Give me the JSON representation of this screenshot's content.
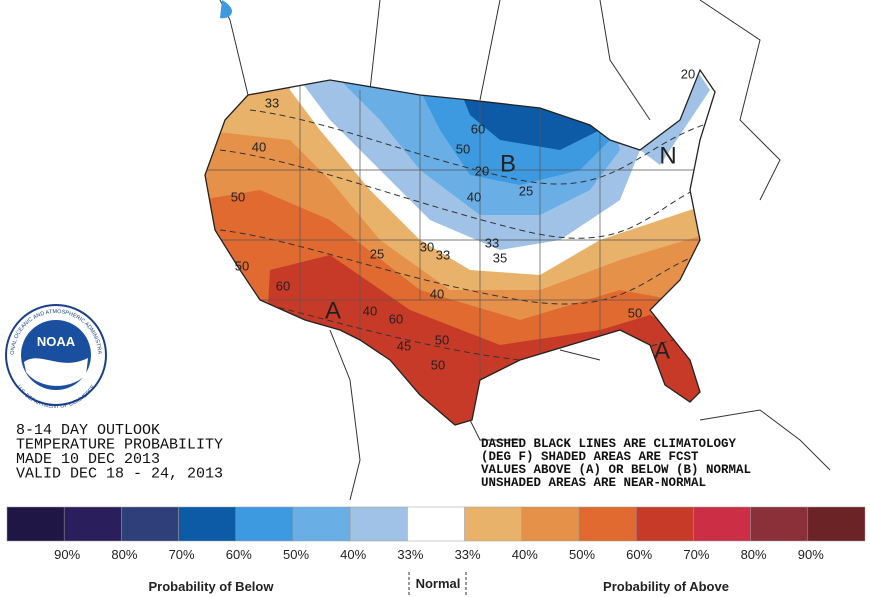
{
  "title_block": {
    "lines": [
      "8-14 DAY OUTLOOK",
      "TEMPERATURE PROBABILITY",
      "MADE  10 DEC 2013",
      "VALID  DEC 18 - 24, 2013"
    ]
  },
  "notes": [
    "DASHED BLACK LINES ARE CLIMATOLOGY",
    "(DEG F) SHADED AREAS ARE FCST",
    "VALUES ABOVE (A) OR BELOW (B) NORMAL",
    "UNSHADED AREAS ARE NEAR-NORMAL"
  ],
  "logo": {
    "text": "NOAA",
    "ring_top": "NATIONAL OCEANIC AND ATMOSPHERIC ADMINISTRATION",
    "ring_bottom": "U.S. DEPARTMENT OF COMMERCE"
  },
  "map_labels": [
    "A",
    "A",
    "B",
    "N",
    "33",
    "40",
    "50",
    "50",
    "60",
    "40",
    "60",
    "45",
    "50",
    "50",
    "40",
    "33",
    "30",
    "25",
    "33",
    "35",
    "40",
    "50",
    "60",
    "20",
    "25",
    "20",
    "50"
  ],
  "legend": {
    "colors": [
      "#1f1645",
      "#2a1f5c",
      "#2e3f7a",
      "#0d5aa6",
      "#3d9ae0",
      "#6aaee6",
      "#a0c2e6",
      "#ffffff",
      "#e9b26a",
      "#e6914a",
      "#e06a30",
      "#c83a28",
      "#cc2e45",
      "#8b3038",
      "#6b2326"
    ],
    "labels": [
      "90%",
      "80%",
      "70%",
      "60%",
      "50%",
      "40%",
      "33%",
      "33%",
      "40%",
      "50%",
      "60%",
      "70%",
      "80%",
      "90%"
    ],
    "below": "Probability of Below",
    "normal": "Normal",
    "above": "Probability of Above"
  }
}
